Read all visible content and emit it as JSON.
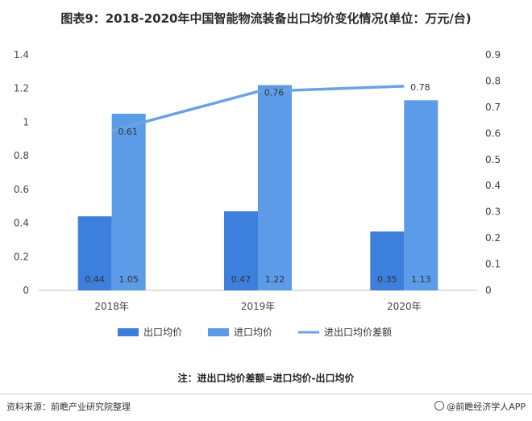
{
  "title": "图表9：2018-2020年中国智能物流装备出口均价变化情况(单位：万元/台)",
  "chart_data": {
    "type": "bar",
    "categories": [
      "2018年",
      "2019年",
      "2020年"
    ],
    "series": [
      {
        "name": "出口均价",
        "kind": "bar",
        "axis": "left",
        "color": "#3d7fdc",
        "values": [
          0.44,
          0.47,
          0.35
        ],
        "labels": [
          "0.44",
          "0.47",
          "0.35"
        ]
      },
      {
        "name": "进口均价",
        "kind": "bar",
        "axis": "left",
        "color": "#5b9be8",
        "values": [
          1.05,
          1.22,
          1.13
        ],
        "labels": [
          "1.05",
          "1.22",
          "1.13"
        ]
      },
      {
        "name": "进出口均价差额",
        "kind": "line",
        "axis": "right",
        "color": "#6aa3e3",
        "values": [
          0.61,
          0.76,
          0.78
        ],
        "labels": [
          "0.61",
          "0.76",
          "0.78"
        ]
      }
    ],
    "y_left": {
      "range": [
        0,
        1.4
      ],
      "ticks": [
        "0",
        "0.2",
        "0.4",
        "0.6",
        "0.8",
        "1",
        "1.2",
        "1.4"
      ]
    },
    "y_right": {
      "range": [
        0,
        0.9
      ],
      "ticks": [
        "0",
        "0.1",
        "0.2",
        "0.3",
        "0.4",
        "0.5",
        "0.6",
        "0.7",
        "0.8",
        "0.9"
      ]
    },
    "grid": false,
    "legend_position": "bottom"
  },
  "note": "注：进出口均价差额=进口均价-出口均价",
  "source": "资料来源：前瞻产业研究院整理",
  "brand": "@前瞻经济学人APP"
}
